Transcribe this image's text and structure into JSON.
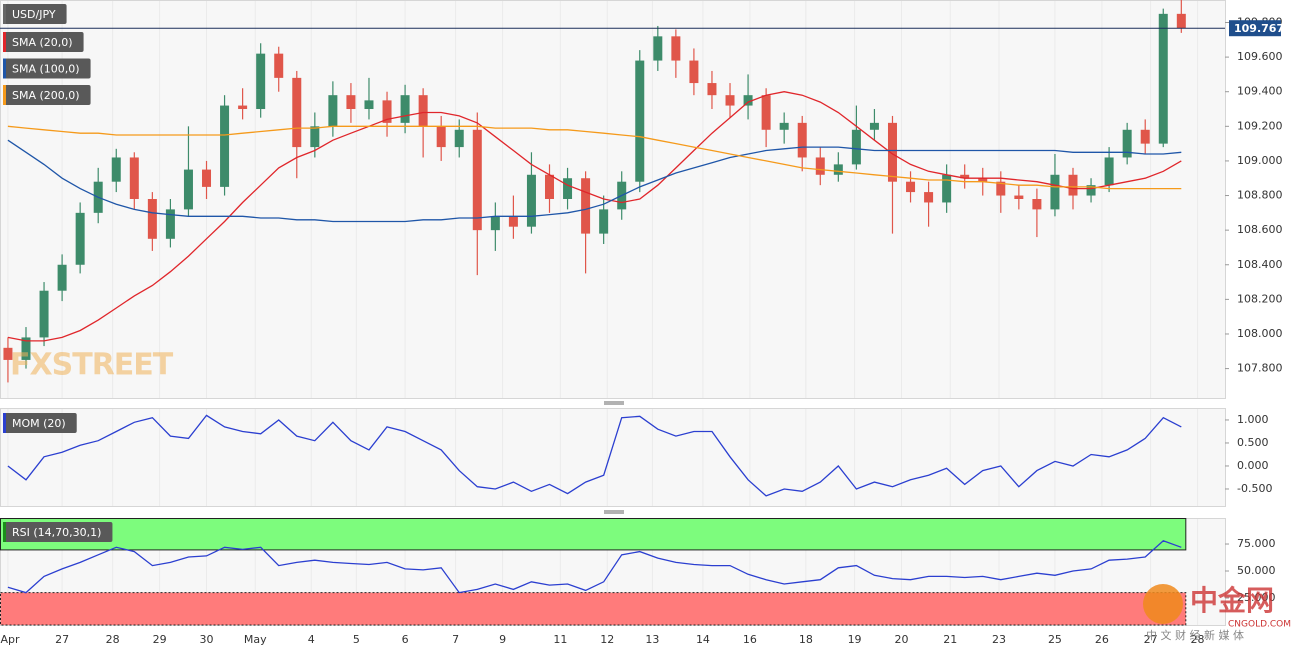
{
  "chart_data": [
    {
      "type": "candlestick",
      "title": "USD/JPY",
      "up_color": "#3d8b6a",
      "down_color": "#e0564a",
      "open": [
        107.92,
        107.85,
        107.98,
        108.25,
        108.4,
        108.7,
        108.88,
        109.02,
        108.78,
        108.55,
        108.72,
        108.95,
        108.85,
        109.32,
        109.3,
        109.62,
        109.48,
        109.08,
        109.2,
        109.38,
        109.3,
        109.35,
        109.22,
        109.38,
        109.2,
        109.08,
        109.18,
        108.6,
        108.68,
        108.62,
        108.92,
        108.78,
        108.9,
        108.58,
        108.72,
        108.88,
        109.58,
        109.72,
        109.58,
        109.45,
        109.38,
        109.32,
        109.38,
        109.18,
        109.22,
        109.02,
        108.92,
        108.98,
        109.18,
        109.22,
        108.88,
        108.82,
        108.76,
        108.92,
        108.9,
        108.88,
        108.8,
        108.78,
        108.72,
        108.92,
        108.8,
        108.86,
        109.02,
        109.18,
        109.1,
        109.85
      ],
      "high": [
        107.98,
        108.04,
        108.3,
        108.46,
        108.76,
        108.96,
        109.07,
        109.05,
        108.82,
        108.78,
        109.2,
        109.0,
        109.38,
        109.42,
        109.68,
        109.66,
        109.52,
        109.28,
        109.46,
        109.45,
        109.48,
        109.4,
        109.44,
        109.42,
        109.26,
        109.24,
        109.28,
        108.76,
        108.8,
        109.05,
        108.98,
        108.96,
        108.94,
        108.8,
        108.94,
        109.64,
        109.78,
        109.76,
        109.65,
        109.52,
        109.45,
        109.5,
        109.42,
        109.28,
        109.26,
        109.08,
        109.05,
        109.32,
        109.3,
        109.26,
        108.94,
        108.88,
        108.98,
        108.98,
        108.96,
        108.94,
        108.86,
        108.84,
        109.04,
        108.96,
        108.9,
        109.08,
        109.22,
        109.24,
        109.88,
        109.93
      ],
      "low": [
        107.72,
        107.8,
        107.93,
        108.19,
        108.35,
        108.64,
        108.82,
        108.72,
        108.48,
        108.5,
        108.68,
        108.78,
        108.8,
        109.24,
        109.25,
        109.4,
        108.9,
        109.02,
        109.14,
        109.22,
        109.24,
        109.14,
        109.16,
        109.02,
        109.0,
        109.02,
        108.34,
        108.48,
        108.55,
        108.58,
        108.7,
        108.72,
        108.35,
        108.52,
        108.66,
        108.82,
        109.52,
        109.48,
        109.38,
        109.3,
        109.25,
        109.24,
        109.08,
        109.1,
        108.94,
        108.86,
        108.88,
        108.95,
        109.12,
        108.58,
        108.76,
        108.62,
        108.7,
        108.84,
        108.8,
        108.7,
        108.72,
        108.56,
        108.68,
        108.72,
        108.76,
        108.82,
        108.98,
        109.04,
        109.08,
        109.74
      ],
      "close": [
        107.85,
        107.98,
        108.25,
        108.4,
        108.7,
        108.88,
        109.02,
        108.78,
        108.55,
        108.72,
        108.95,
        108.85,
        109.32,
        109.3,
        109.62,
        109.48,
        109.08,
        109.2,
        109.38,
        109.3,
        109.35,
        109.22,
        109.38,
        109.2,
        109.08,
        109.18,
        108.6,
        108.68,
        108.62,
        108.92,
        108.78,
        108.9,
        108.58,
        108.72,
        108.88,
        109.58,
        109.72,
        109.58,
        109.45,
        109.38,
        109.32,
        109.38,
        109.18,
        109.22,
        109.02,
        108.92,
        108.98,
        109.18,
        109.22,
        108.88,
        108.82,
        108.76,
        108.92,
        108.9,
        108.88,
        108.8,
        108.78,
        108.72,
        108.92,
        108.8,
        108.86,
        109.02,
        109.18,
        109.1,
        109.85,
        109.767
      ],
      "series": [
        {
          "name": "SMA (20,0)",
          "color": "#e0262b",
          "values": [
            107.98,
            107.96,
            107.96,
            107.98,
            108.02,
            108.08,
            108.15,
            108.22,
            108.28,
            108.36,
            108.45,
            108.55,
            108.65,
            108.76,
            108.86,
            108.96,
            109.02,
            109.06,
            109.12,
            109.16,
            109.2,
            109.24,
            109.26,
            109.28,
            109.28,
            109.26,
            109.22,
            109.14,
            109.06,
            108.98,
            108.92,
            108.86,
            108.82,
            108.78,
            108.76,
            108.78,
            108.86,
            108.96,
            109.06,
            109.16,
            109.25,
            109.34,
            109.38,
            109.4,
            109.38,
            109.34,
            109.28,
            109.2,
            109.12,
            109.04,
            108.98,
            108.94,
            108.92,
            108.9,
            108.9,
            108.9,
            108.89,
            108.88,
            108.86,
            108.84,
            108.84,
            108.86,
            108.88,
            108.9,
            108.94,
            109.0
          ]
        },
        {
          "name": "SMA (100,0)",
          "color": "#1f56a8",
          "values": [
            109.12,
            109.05,
            108.98,
            108.9,
            108.84,
            108.79,
            108.75,
            108.72,
            108.7,
            108.69,
            108.68,
            108.68,
            108.68,
            108.68,
            108.67,
            108.67,
            108.66,
            108.66,
            108.65,
            108.65,
            108.65,
            108.65,
            108.65,
            108.66,
            108.66,
            108.67,
            108.67,
            108.68,
            108.68,
            108.68,
            108.69,
            108.7,
            108.72,
            108.75,
            108.8,
            108.85,
            108.89,
            108.93,
            108.96,
            108.99,
            109.02,
            109.04,
            109.06,
            109.07,
            109.08,
            109.08,
            109.08,
            109.07,
            109.06,
            109.06,
            109.06,
            109.06,
            109.06,
            109.06,
            109.06,
            109.06,
            109.06,
            109.06,
            109.06,
            109.05,
            109.05,
            109.05,
            109.05,
            109.04,
            109.04,
            109.05
          ]
        },
        {
          "name": "SMA (200,0)",
          "color": "#f59a1b",
          "values": [
            109.2,
            109.19,
            109.18,
            109.17,
            109.16,
            109.16,
            109.15,
            109.15,
            109.15,
            109.15,
            109.15,
            109.15,
            109.15,
            109.16,
            109.17,
            109.18,
            109.19,
            109.19,
            109.2,
            109.2,
            109.2,
            109.2,
            109.2,
            109.2,
            109.2,
            109.2,
            109.2,
            109.19,
            109.19,
            109.19,
            109.18,
            109.18,
            109.17,
            109.16,
            109.15,
            109.14,
            109.12,
            109.1,
            109.08,
            109.06,
            109.04,
            109.02,
            109.0,
            108.98,
            108.96,
            108.95,
            108.94,
            108.93,
            108.92,
            108.91,
            108.9,
            108.89,
            108.89,
            108.88,
            108.88,
            108.87,
            108.86,
            108.86,
            108.85,
            108.85,
            108.85,
            108.84,
            108.84,
            108.84,
            108.84,
            108.84
          ]
        }
      ],
      "ylim": [
        107.63,
        109.93
      ],
      "yticks": [
        {
          "value": 107.8,
          "label": "107.800"
        },
        {
          "value": 108.0,
          "label": "108.000"
        },
        {
          "value": 108.2,
          "label": "108.200"
        },
        {
          "value": 108.4,
          "label": "108.400"
        },
        {
          "value": 108.6,
          "label": "108.600"
        },
        {
          "value": 108.8,
          "label": "108.800"
        },
        {
          "value": 109.0,
          "label": "109.000"
        },
        {
          "value": 109.2,
          "label": "109.200"
        },
        {
          "value": 109.4,
          "label": "109.400"
        },
        {
          "value": 109.6,
          "label": "109.600"
        },
        {
          "value": 109.8,
          "label": "109.800"
        }
      ],
      "last_price": {
        "value": 109.767,
        "label": "109.767"
      },
      "xlim": [
        -0.44,
        67.42
      ]
    },
    {
      "type": "line",
      "series": [
        {
          "name": "MOM (20)",
          "color": "#2b3fd0",
          "values": [
            0.0,
            -0.3,
            0.2,
            0.3,
            0.45,
            0.55,
            0.75,
            0.95,
            1.05,
            0.65,
            0.6,
            1.1,
            0.85,
            0.75,
            0.7,
            1.0,
            0.65,
            0.55,
            0.95,
            0.55,
            0.35,
            0.85,
            0.75,
            0.55,
            0.35,
            -0.1,
            -0.45,
            -0.5,
            -0.35,
            -0.55,
            -0.4,
            -0.6,
            -0.35,
            -0.2,
            1.05,
            1.08,
            0.8,
            0.65,
            0.75,
            0.75,
            0.2,
            -0.3,
            -0.65,
            -0.5,
            -0.55,
            -0.35,
            0.0,
            -0.5,
            -0.35,
            -0.45,
            -0.3,
            -0.2,
            -0.05,
            -0.4,
            -0.1,
            0.0,
            -0.45,
            -0.1,
            0.1,
            0.0,
            0.25,
            0.2,
            0.35,
            0.6,
            1.05,
            0.85
          ]
        }
      ],
      "ylim": [
        -0.87,
        1.26
      ],
      "yticks": [
        {
          "value": 1,
          "label": "1.000"
        },
        {
          "value": 0.5,
          "label": "0.500"
        },
        {
          "value": 0,
          "label": "0.000"
        },
        {
          "value": -0.5,
          "label": "-0.500"
        }
      ],
      "xlim": [
        -0.44,
        67.42
      ]
    },
    {
      "type": "line",
      "series": [
        {
          "name": "RSI (14,70,30,1)",
          "color": "#2b3fd0",
          "values": [
            35,
            30,
            45,
            52,
            58,
            65,
            72,
            68,
            55,
            58,
            63,
            64,
            72,
            70,
            72,
            55,
            58,
            60,
            58,
            57,
            56,
            58,
            52,
            51,
            53,
            30,
            33,
            38,
            33,
            40,
            37,
            38,
            32,
            40,
            65,
            68,
            62,
            58,
            56,
            55,
            55,
            47,
            42,
            38,
            40,
            42,
            53,
            55,
            46,
            43,
            42,
            45,
            45,
            44,
            45,
            42,
            45,
            48,
            46,
            50,
            52,
            60,
            61,
            63,
            78,
            72
          ]
        }
      ],
      "overbought": 70,
      "oversold": 30,
      "overbought_color": "#7dfc7d",
      "oversold_color": "#ff7b7b",
      "ylim": [
        0,
        99.1
      ],
      "yticks": [
        {
          "value": 25,
          "label": "25.000"
        },
        {
          "value": 50,
          "label": "50.000"
        },
        {
          "value": 75,
          "label": "75.000"
        }
      ],
      "xlim": [
        -0.44,
        67.42
      ],
      "xticks": [
        {
          "value": 0,
          "label": "Apr"
        },
        {
          "value": 3.0,
          "label": "27"
        },
        {
          "value": 5.8,
          "label": "28"
        },
        {
          "value": 8.4,
          "label": "29"
        },
        {
          "value": 11.0,
          "label": "30"
        },
        {
          "value": 13.7,
          "label": "May"
        },
        {
          "value": 16.8,
          "label": "4"
        },
        {
          "value": 19.3,
          "label": "5"
        },
        {
          "value": 22.0,
          "label": "6"
        },
        {
          "value": 24.8,
          "label": "7"
        },
        {
          "value": 27.4,
          "label": "9"
        },
        {
          "value": 30.6,
          "label": "11"
        },
        {
          "value": 33.2,
          "label": "12"
        },
        {
          "value": 35.7,
          "label": "13"
        },
        {
          "value": 38.5,
          "label": "14"
        },
        {
          "value": 41.1,
          "label": "16"
        },
        {
          "value": 44.2,
          "label": "18"
        },
        {
          "value": 46.9,
          "label": "19"
        },
        {
          "value": 49.5,
          "label": "20"
        },
        {
          "value": 52.2,
          "label": "21"
        },
        {
          "value": 54.9,
          "label": "23"
        },
        {
          "value": 58.0,
          "label": "25"
        },
        {
          "value": 60.6,
          "label": "26"
        },
        {
          "value": 63.3,
          "label": "27"
        },
        {
          "value": 65.9,
          "label": "28"
        }
      ]
    }
  ],
  "watermarks": {
    "fxstreet": "FXSTREET",
    "cngold": "中金网",
    "cngold_url": "CNGOLD.COM",
    "cngold_tagline": "中 文 财 经 新 媒 体"
  }
}
